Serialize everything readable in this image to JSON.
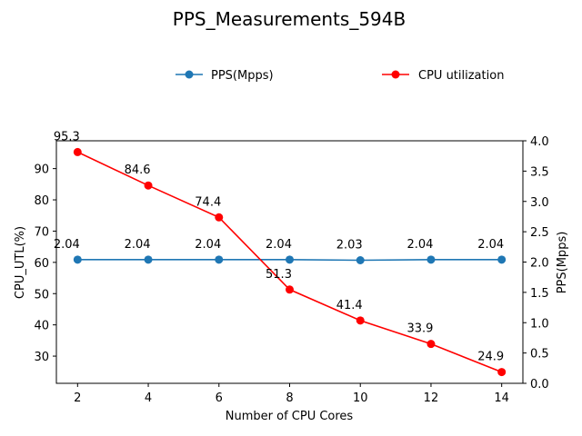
{
  "chart_data": {
    "type": "line",
    "title": "PPS_Measurements_594B",
    "xlabel": "Number of CPU Cores",
    "ylabel_left": "CPU_UTL(%)",
    "ylabel_right": "PPS(Mpps)",
    "x": [
      2,
      4,
      6,
      8,
      10,
      12,
      14
    ],
    "x_ticks": [
      "2",
      "4",
      "6",
      "8",
      "10",
      "12",
      "14"
    ],
    "xlim": [
      1.4,
      14.6
    ],
    "left_axis": {
      "ylim": [
        21.3,
        98.9
      ],
      "ticks": [
        "30",
        "40",
        "50",
        "60",
        "70",
        "80",
        "90"
      ]
    },
    "right_axis": {
      "ylim": [
        0.0,
        4.0
      ],
      "ticks": [
        "0.0",
        "0.5",
        "1.0",
        "1.5",
        "2.0",
        "2.5",
        "3.0",
        "3.5",
        "4.0"
      ]
    },
    "series": [
      {
        "name": "PPS(Mpps)",
        "axis": "right",
        "color": "#1f77b4",
        "values": [
          2.04,
          2.04,
          2.04,
          2.04,
          2.03,
          2.04,
          2.04
        ],
        "labels": [
          "2.04",
          "2.04",
          "2.04",
          "2.04",
          "2.03",
          "2.04",
          "2.04"
        ]
      },
      {
        "name": "CPU utilization",
        "axis": "left",
        "color": "#ff0000",
        "values": [
          95.3,
          84.6,
          74.4,
          51.3,
          41.4,
          33.9,
          24.9
        ],
        "labels": [
          "95.3",
          "84.6",
          "74.4",
          "51.3",
          "41.4",
          "33.9",
          "24.9"
        ]
      }
    ],
    "legend": {
      "position": "top-center",
      "entries": [
        "PPS(Mpps)",
        "CPU utilization"
      ]
    },
    "grid": false
  }
}
